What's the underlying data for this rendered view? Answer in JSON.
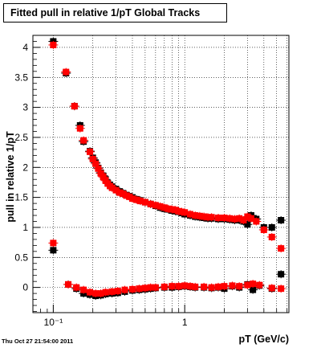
{
  "chart_data": {
    "type": "scatter",
    "title": "Fitted pull in relative 1/pT  Global Tracks",
    "xlabel": "pT (GeV/c)",
    "ylabel": "pull in relative 1/pT",
    "x_scale": "log",
    "xlim": [
      0.07,
      6.2
    ],
    "ylim": [
      -0.42,
      4.2
    ],
    "x_tick_labels": [
      "10⁻¹",
      "1"
    ],
    "y_tick_labels": [
      "0",
      "0.5",
      "1",
      "1.5",
      "2",
      "2.5",
      "3",
      "3.5",
      "4"
    ],
    "grid": true,
    "timestamp": "Thu Oct 27 21:54:00 2011",
    "series": [
      {
        "color": "#000000",
        "points": [
          [
            0.1,
            4.1
          ],
          [
            0.125,
            3.57
          ],
          [
            0.145,
            3.02
          ],
          [
            0.16,
            2.7
          ],
          [
            0.17,
            2.43
          ],
          [
            0.19,
            2.27
          ],
          [
            0.2,
            2.16
          ],
          [
            0.21,
            2.08
          ],
          [
            0.22,
            1.99
          ],
          [
            0.23,
            1.91
          ],
          [
            0.24,
            1.86
          ],
          [
            0.25,
            1.8
          ],
          [
            0.26,
            1.74
          ],
          [
            0.27,
            1.71
          ],
          [
            0.28,
            1.68
          ],
          [
            0.3,
            1.64
          ],
          [
            0.32,
            1.6
          ],
          [
            0.34,
            1.57
          ],
          [
            0.36,
            1.54
          ],
          [
            0.38,
            1.52
          ],
          [
            0.4,
            1.5
          ],
          [
            0.43,
            1.47
          ],
          [
            0.46,
            1.45
          ],
          [
            0.5,
            1.42
          ],
          [
            0.55,
            1.39
          ],
          [
            0.6,
            1.36
          ],
          [
            0.65,
            1.33
          ],
          [
            0.7,
            1.31
          ],
          [
            0.75,
            1.3
          ],
          [
            0.8,
            1.28
          ],
          [
            0.85,
            1.27
          ],
          [
            0.9,
            1.26
          ],
          [
            0.95,
            1.24
          ],
          [
            1.0,
            1.22
          ],
          [
            1.1,
            1.2
          ],
          [
            1.2,
            1.18
          ],
          [
            1.3,
            1.17
          ],
          [
            1.4,
            1.16
          ],
          [
            1.5,
            1.15
          ],
          [
            1.6,
            1.15
          ],
          [
            1.8,
            1.14
          ],
          [
            2.0,
            1.14
          ],
          [
            2.2,
            1.13
          ],
          [
            2.4,
            1.12
          ],
          [
            2.6,
            1.12
          ],
          [
            2.8,
            1.1
          ],
          [
            3.0,
            1.05
          ],
          [
            3.2,
            1.2
          ],
          [
            3.5,
            1.14
          ],
          [
            4.0,
            1.0
          ],
          [
            4.6,
            1.0
          ],
          [
            5.4,
            1.12
          ],
          [
            0.1,
            0.62
          ],
          [
            0.13,
            0.05
          ],
          [
            0.15,
            -0.02
          ],
          [
            0.17,
            -0.1
          ],
          [
            0.19,
            -0.12
          ],
          [
            0.21,
            -0.14
          ],
          [
            0.23,
            -0.13
          ],
          [
            0.25,
            -0.11
          ],
          [
            0.28,
            -0.1
          ],
          [
            0.31,
            -0.09
          ],
          [
            0.35,
            -0.07
          ],
          [
            0.4,
            -0.05
          ],
          [
            0.45,
            -0.04
          ],
          [
            0.5,
            -0.03
          ],
          [
            0.55,
            -0.02
          ],
          [
            0.6,
            -0.01
          ],
          [
            0.7,
            0.0
          ],
          [
            0.8,
            0.0
          ],
          [
            0.9,
            0.01
          ],
          [
            1.0,
            0.02
          ],
          [
            1.1,
            0.01
          ],
          [
            1.2,
            0.0
          ],
          [
            1.4,
            0.0
          ],
          [
            1.6,
            -0.01
          ],
          [
            1.8,
            0.0
          ],
          [
            2.0,
            -0.02
          ],
          [
            2.3,
            0.02
          ],
          [
            2.6,
            0.0
          ],
          [
            3.0,
            0.05
          ],
          [
            3.3,
            -0.04
          ],
          [
            3.7,
            0.03
          ],
          [
            4.6,
            -0.02
          ],
          [
            5.4,
            0.22
          ]
        ]
      },
      {
        "color": "#ff0000",
        "points": [
          [
            0.1,
            4.04
          ],
          [
            0.125,
            3.59
          ],
          [
            0.145,
            3.02
          ],
          [
            0.16,
            2.65
          ],
          [
            0.17,
            2.45
          ],
          [
            0.19,
            2.26
          ],
          [
            0.2,
            2.14
          ],
          [
            0.21,
            2.06
          ],
          [
            0.22,
            1.98
          ],
          [
            0.23,
            1.9
          ],
          [
            0.24,
            1.84
          ],
          [
            0.25,
            1.78
          ],
          [
            0.26,
            1.73
          ],
          [
            0.27,
            1.69
          ],
          [
            0.28,
            1.66
          ],
          [
            0.3,
            1.62
          ],
          [
            0.32,
            1.58
          ],
          [
            0.34,
            1.56
          ],
          [
            0.36,
            1.53
          ],
          [
            0.38,
            1.51
          ],
          [
            0.4,
            1.48
          ],
          [
            0.43,
            1.46
          ],
          [
            0.46,
            1.44
          ],
          [
            0.5,
            1.42
          ],
          [
            0.55,
            1.39
          ],
          [
            0.6,
            1.37
          ],
          [
            0.65,
            1.35
          ],
          [
            0.7,
            1.33
          ],
          [
            0.75,
            1.31
          ],
          [
            0.8,
            1.3
          ],
          [
            0.85,
            1.29
          ],
          [
            0.9,
            1.27
          ],
          [
            0.95,
            1.26
          ],
          [
            1.0,
            1.25
          ],
          [
            1.1,
            1.22
          ],
          [
            1.2,
            1.2
          ],
          [
            1.3,
            1.19
          ],
          [
            1.4,
            1.18
          ],
          [
            1.5,
            1.17
          ],
          [
            1.6,
            1.17
          ],
          [
            1.8,
            1.16
          ],
          [
            2.0,
            1.16
          ],
          [
            2.2,
            1.15
          ],
          [
            2.4,
            1.14
          ],
          [
            2.6,
            1.15
          ],
          [
            2.8,
            1.12
          ],
          [
            3.0,
            1.18
          ],
          [
            3.2,
            1.15
          ],
          [
            3.5,
            1.1
          ],
          [
            4.0,
            0.96
          ],
          [
            4.6,
            0.84
          ],
          [
            5.4,
            0.65
          ],
          [
            0.1,
            0.74
          ],
          [
            0.13,
            0.05
          ],
          [
            0.15,
            0.0
          ],
          [
            0.17,
            -0.04
          ],
          [
            0.19,
            -0.08
          ],
          [
            0.21,
            -0.1
          ],
          [
            0.23,
            -0.1
          ],
          [
            0.25,
            -0.08
          ],
          [
            0.28,
            -0.07
          ],
          [
            0.31,
            -0.06
          ],
          [
            0.35,
            -0.04
          ],
          [
            0.4,
            -0.03
          ],
          [
            0.45,
            -0.02
          ],
          [
            0.5,
            -0.01
          ],
          [
            0.55,
            0.0
          ],
          [
            0.6,
            0.0
          ],
          [
            0.7,
            0.01
          ],
          [
            0.8,
            0.02
          ],
          [
            0.9,
            0.02
          ],
          [
            1.0,
            0.03
          ],
          [
            1.1,
            0.02
          ],
          [
            1.2,
            0.01
          ],
          [
            1.4,
            0.01
          ],
          [
            1.6,
            0.0
          ],
          [
            1.8,
            0.01
          ],
          [
            2.0,
            0.02
          ],
          [
            2.3,
            0.03
          ],
          [
            2.6,
            0.02
          ],
          [
            3.0,
            0.04
          ],
          [
            3.3,
            0.06
          ],
          [
            3.7,
            0.04
          ],
          [
            4.6,
            -0.01
          ],
          [
            5.4,
            -0.02
          ]
        ]
      }
    ]
  }
}
